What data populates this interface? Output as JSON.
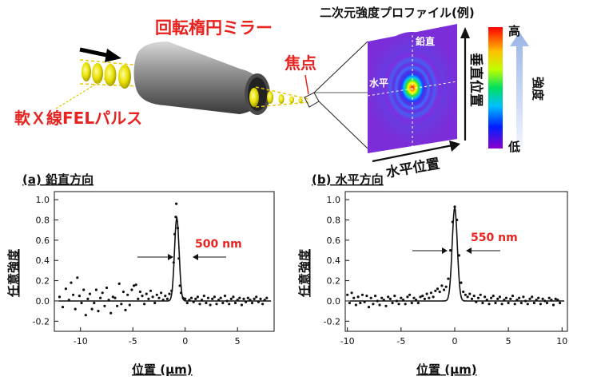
{
  "diagram": {
    "mirror_label": "回転楕円ミラー",
    "pulse_label": "軟Ｘ線FELパルス",
    "focus_label": "焦点",
    "profile_title": "二次元強度プロファイル(例)",
    "vertical_label": "鉛直",
    "horizontal_label": "水平",
    "vertical_position_label": "垂直位置",
    "horizontal_position_label": "水平位置",
    "intensity_label": "強度",
    "high_label": "高",
    "low_label": "低"
  },
  "colors": {
    "accent_red": "#e8231f",
    "beam_yellow": "#e8e000",
    "mirror_gray": "#6e6e6e",
    "colorbar": [
      "#ff0000",
      "#ffff00",
      "#00e000",
      "#00c0ff",
      "#0000ff",
      "#8800cc"
    ]
  },
  "chart_data": [
    {
      "type": "scatter",
      "panel_title": "(a) 鉛直方向",
      "xlabel": "位置 (µm)",
      "ylabel": "任意強度",
      "annotation": "500 nm",
      "xlim": [
        -12.5,
        8.5
      ],
      "ylim": [
        -0.3,
        1.08
      ],
      "xticks": [
        "-10",
        "-5",
        "0",
        "5"
      ],
      "xtick_values": [
        -10,
        -5,
        0,
        5
      ],
      "yticks": [
        "1.0",
        "0.8",
        "0.6",
        "0.4",
        "0.2",
        "0.0",
        "-0.2"
      ],
      "ytick_values": [
        1.0,
        0.8,
        0.6,
        0.4,
        0.2,
        0.0,
        -0.2
      ],
      "fit": {
        "center": -0.8,
        "peak": 0.82,
        "sigma": 0.22
      },
      "points": [
        [
          -12.0,
          0.04
        ],
        [
          -11.7,
          -0.06
        ],
        [
          -11.4,
          0.12
        ],
        [
          -11.1,
          0.01
        ],
        [
          -10.9,
          0.18
        ],
        [
          -10.7,
          0.06
        ],
        [
          -10.5,
          -0.08
        ],
        [
          -10.3,
          0.23
        ],
        [
          -10.1,
          0.05
        ],
        [
          -9.9,
          -0.02
        ],
        [
          -9.7,
          0.11
        ],
        [
          -9.5,
          -0.14
        ],
        [
          -9.3,
          0.02
        ],
        [
          -9.1,
          0.07
        ],
        [
          -8.9,
          -0.08
        ],
        [
          -8.7,
          -0.02
        ],
        [
          -8.5,
          0.11
        ],
        [
          -8.3,
          -0.1
        ],
        [
          -8.1,
          0.03
        ],
        [
          -7.9,
          0.08
        ],
        [
          -7.7,
          -0.05
        ],
        [
          -7.5,
          0.13
        ],
        [
          -7.3,
          0.01
        ],
        [
          -7.1,
          -0.12
        ],
        [
          -6.9,
          0.04
        ],
        [
          -6.7,
          0.03
        ],
        [
          -6.5,
          -0.05
        ],
        [
          -6.3,
          0.17
        ],
        [
          -6.1,
          -0.03
        ],
        [
          -5.9,
          0.09
        ],
        [
          -5.7,
          -0.09
        ],
        [
          -5.5,
          0.06
        ],
        [
          -5.3,
          -0.04
        ],
        [
          -5.1,
          0.11
        ],
        [
          -4.9,
          0.15
        ],
        [
          -4.7,
          0.16
        ],
        [
          -4.5,
          0.02
        ],
        [
          -4.3,
          0.09
        ],
        [
          -4.1,
          0.05
        ],
        [
          -3.9,
          -0.03
        ],
        [
          -3.7,
          0.07
        ],
        [
          -3.5,
          0.02
        ],
        [
          -3.3,
          0.1
        ],
        [
          -3.1,
          0.04
        ],
        [
          -2.9,
          -0.02
        ],
        [
          -2.7,
          0.06
        ],
        [
          -2.5,
          0.03
        ],
        [
          -2.3,
          0.08
        ],
        [
          -2.1,
          0.01
        ],
        [
          -1.9,
          0.05
        ],
        [
          -1.7,
          0.02
        ],
        [
          -1.5,
          0.07
        ],
        [
          -1.3,
          0.1
        ],
        [
          -1.1,
          0.38
        ],
        [
          -1.0,
          0.66
        ],
        [
          -0.9,
          0.83
        ],
        [
          -0.85,
          0.96
        ],
        [
          -0.7,
          0.72
        ],
        [
          -0.6,
          0.42
        ],
        [
          -0.5,
          0.15
        ],
        [
          -0.4,
          0.08
        ],
        [
          -0.2,
          0.03
        ],
        [
          0.0,
          0.02
        ],
        [
          0.2,
          -0.02
        ],
        [
          0.4,
          0.01
        ],
        [
          0.6,
          0.03
        ],
        [
          0.8,
          -0.01
        ],
        [
          1.0,
          0.02
        ],
        [
          1.2,
          0.04
        ],
        [
          1.4,
          -0.03
        ],
        [
          1.6,
          0.01
        ],
        [
          1.8,
          0.05
        ],
        [
          2.0,
          -0.02
        ],
        [
          2.2,
          0.03
        ],
        [
          2.4,
          -0.04
        ],
        [
          2.6,
          0.02
        ],
        [
          2.8,
          0.04
        ],
        [
          3.0,
          -0.03
        ],
        [
          3.2,
          0.01
        ],
        [
          3.4,
          0.03
        ],
        [
          3.6,
          -0.02
        ],
        [
          3.8,
          0.05
        ],
        [
          4.0,
          0.0
        ],
        [
          4.2,
          -0.03
        ],
        [
          4.4,
          0.02
        ],
        [
          4.6,
          0.04
        ],
        [
          4.8,
          -0.02
        ],
        [
          5.0,
          0.01
        ],
        [
          5.2,
          0.03
        ],
        [
          5.4,
          -0.04
        ],
        [
          5.6,
          0.02
        ],
        [
          5.8,
          -0.01
        ],
        [
          6.0,
          0.03
        ],
        [
          6.2,
          0.01
        ],
        [
          6.4,
          -0.02
        ],
        [
          6.6,
          0.02
        ],
        [
          6.8,
          0.04
        ],
        [
          7.0,
          -0.01
        ],
        [
          7.2,
          0.02
        ],
        [
          7.4,
          -0.03
        ],
        [
          7.6,
          0.01
        ],
        [
          7.8,
          0.03
        ]
      ]
    },
    {
      "type": "scatter",
      "panel_title": "(b) 水平方向",
      "xlabel": "位置 (µm)",
      "ylabel": "任意強度",
      "annotation": "550 nm",
      "xlim": [
        -10.2,
        10.5
      ],
      "ylim": [
        -0.3,
        1.08
      ],
      "xticks": [
        "-10",
        "-5",
        "0",
        "5",
        "10"
      ],
      "xtick_values": [
        -10,
        -5,
        0,
        5,
        10
      ],
      "yticks": [
        "1.0",
        "0.8",
        "0.6",
        "0.4",
        "0.2",
        "0.0",
        "-0.2"
      ],
      "ytick_values": [
        1.0,
        0.8,
        0.6,
        0.4,
        0.2,
        0.0,
        -0.2
      ],
      "fit": {
        "center": 0.0,
        "peak": 0.92,
        "sigma": 0.24
      },
      "points": [
        [
          -10.0,
          0.06
        ],
        [
          -9.8,
          -0.02
        ],
        [
          -9.6,
          0.08
        ],
        [
          -9.4,
          0.03
        ],
        [
          -9.2,
          -0.04
        ],
        [
          -9.0,
          0.04
        ],
        [
          -8.8,
          -0.02
        ],
        [
          -8.6,
          0.06
        ],
        [
          -8.4,
          -0.01
        ],
        [
          -8.2,
          0.05
        ],
        [
          -8.0,
          -0.06
        ],
        [
          -7.8,
          0.03
        ],
        [
          -7.6,
          -0.03
        ],
        [
          -7.4,
          0.05
        ],
        [
          -7.2,
          0.0
        ],
        [
          -7.0,
          -0.04
        ],
        [
          -6.8,
          0.03
        ],
        [
          -6.6,
          0.01
        ],
        [
          -6.4,
          -0.05
        ],
        [
          -6.2,
          0.04
        ],
        [
          -6.0,
          0.02
        ],
        [
          -5.8,
          -0.02
        ],
        [
          -5.6,
          0.05
        ],
        [
          -5.4,
          0.0
        ],
        [
          -5.2,
          -0.03
        ],
        [
          -5.0,
          0.03
        ],
        [
          -4.8,
          0.01
        ],
        [
          -4.6,
          -0.03
        ],
        [
          -4.4,
          0.04
        ],
        [
          -4.2,
          0.06
        ],
        [
          -4.0,
          -0.02
        ],
        [
          -3.8,
          0.03
        ],
        [
          -3.6,
          0.01
        ],
        [
          -3.4,
          -0.02
        ],
        [
          -3.2,
          0.04
        ],
        [
          -3.0,
          0.05
        ],
        [
          -2.8,
          0.02
        ],
        [
          -2.6,
          0.07
        ],
        [
          -2.4,
          0.03
        ],
        [
          -2.2,
          0.08
        ],
        [
          -2.0,
          0.04
        ],
        [
          -1.8,
          0.1
        ],
        [
          -1.6,
          0.12
        ],
        [
          -1.4,
          0.09
        ],
        [
          -1.2,
          0.15
        ],
        [
          -1.0,
          0.11
        ],
        [
          -0.8,
          0.14
        ],
        [
          -0.6,
          0.22
        ],
        [
          -0.4,
          0.5
        ],
        [
          -0.2,
          0.78
        ],
        [
          0.0,
          0.93
        ],
        [
          0.2,
          0.8
        ],
        [
          0.4,
          0.45
        ],
        [
          0.6,
          0.18
        ],
        [
          0.8,
          0.09
        ],
        [
          1.0,
          0.06
        ],
        [
          1.2,
          0.04
        ],
        [
          1.4,
          0.07
        ],
        [
          1.6,
          0.02
        ],
        [
          1.8,
          0.05
        ],
        [
          2.0,
          -0.01
        ],
        [
          2.2,
          0.03
        ],
        [
          2.4,
          0.06
        ],
        [
          2.6,
          -0.02
        ],
        [
          2.8,
          0.04
        ],
        [
          3.0,
          0.01
        ],
        [
          3.2,
          -0.03
        ],
        [
          3.4,
          0.03
        ],
        [
          3.6,
          0.05
        ],
        [
          3.8,
          -0.02
        ],
        [
          4.0,
          0.02
        ],
        [
          4.2,
          0.04
        ],
        [
          4.4,
          -0.03
        ],
        [
          4.6,
          0.01
        ],
        [
          4.8,
          0.03
        ],
        [
          5.0,
          -0.02
        ],
        [
          5.2,
          0.02
        ],
        [
          5.4,
          0.05
        ],
        [
          5.6,
          -0.03
        ],
        [
          5.8,
          0.01
        ],
        [
          6.0,
          0.03
        ],
        [
          6.2,
          -0.02
        ],
        [
          6.4,
          0.04
        ],
        [
          6.6,
          0.0
        ],
        [
          6.8,
          -0.03
        ],
        [
          7.0,
          0.02
        ],
        [
          7.2,
          0.04
        ],
        [
          7.4,
          -0.02
        ],
        [
          7.6,
          0.01
        ],
        [
          7.8,
          0.03
        ],
        [
          8.0,
          -0.03
        ],
        [
          8.2,
          0.02
        ],
        [
          8.4,
          0.0
        ],
        [
          8.6,
          -0.02
        ],
        [
          8.8,
          0.03
        ],
        [
          9.0,
          0.01
        ],
        [
          9.2,
          -0.04
        ],
        [
          9.4,
          0.02
        ],
        [
          9.6,
          0.01
        ],
        [
          9.8,
          -0.02
        ]
      ]
    }
  ]
}
